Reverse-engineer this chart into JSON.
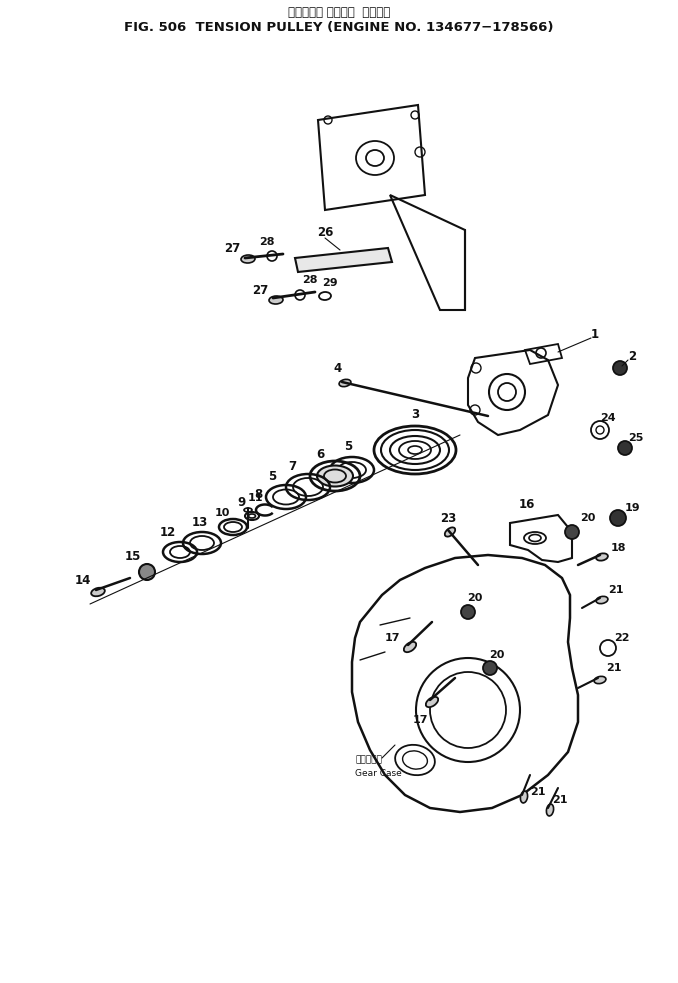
{
  "title_jp": "テンション プーリー  適用号機",
  "title_en": "FIG. 506  TENSION PULLEY (ENGINE NO. 134677−178566)",
  "bg_color": "#ffffff",
  "fg_color": "#000000"
}
